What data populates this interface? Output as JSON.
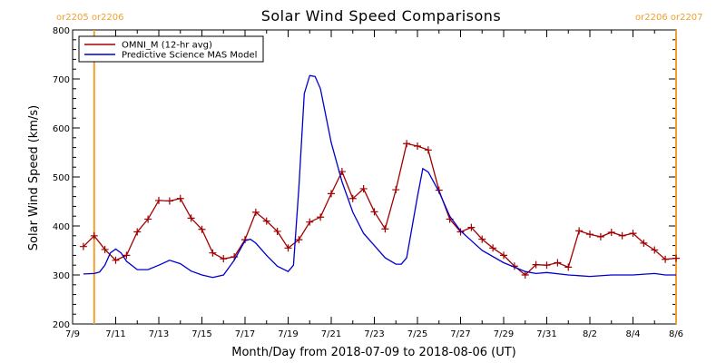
{
  "chart_data": {
    "type": "line",
    "title": "Solar Wind Speed Comparisons",
    "xlabel": "Month/Day from 2018-07-09 to 2018-08-06 (UT)",
    "ylabel": "Solar Wind Speed (km/s)",
    "xlim": [
      "2018-07-09",
      "2018-08-06"
    ],
    "ylim": [
      200,
      800
    ],
    "y_ticks": [
      200,
      300,
      400,
      500,
      600,
      700,
      800
    ],
    "x_ticks": [
      {
        "date": "2018-07-09",
        "label": "7/9"
      },
      {
        "date": "2018-07-11",
        "label": "7/11"
      },
      {
        "date": "2018-07-13",
        "label": "7/13"
      },
      {
        "date": "2018-07-15",
        "label": "7/15"
      },
      {
        "date": "2018-07-17",
        "label": "7/17"
      },
      {
        "date": "2018-07-19",
        "label": "7/19"
      },
      {
        "date": "2018-07-21",
        "label": "7/21"
      },
      {
        "date": "2018-07-23",
        "label": "7/23"
      },
      {
        "date": "2018-07-25",
        "label": "7/25"
      },
      {
        "date": "2018-07-27",
        "label": "7/27"
      },
      {
        "date": "2018-07-29",
        "label": "7/29"
      },
      {
        "date": "2018-07-31",
        "label": "7/31"
      },
      {
        "date": "2018-08-02",
        "label": "8/2"
      },
      {
        "date": "2018-08-04",
        "label": "8/4"
      },
      {
        "date": "2018-08-06",
        "label": "8/6"
      }
    ],
    "grid": false,
    "legend_position": "top-left",
    "markers": [
      {
        "date": "2018-07-10 00:00",
        "label": "or2205 or2206",
        "color": "#f0a030",
        "label_side": "left"
      },
      {
        "date": "2018-08-06 00:00",
        "label": "or2206 or2207",
        "color": "#f0a030",
        "label_side": "right"
      }
    ],
    "series": [
      {
        "name": "OMNI_M (12-hr avg)",
        "color": "#a00000",
        "marker": "plus",
        "points": [
          [
            "2018-07-09 12:00",
            358
          ],
          [
            "2018-07-10 00:00",
            380
          ],
          [
            "2018-07-10 12:00",
            352
          ],
          [
            "2018-07-11 00:00",
            330
          ],
          [
            "2018-07-11 12:00",
            340
          ],
          [
            "2018-07-12 00:00",
            388
          ],
          [
            "2018-07-12 12:00",
            414
          ],
          [
            "2018-07-13 00:00",
            452
          ],
          [
            "2018-07-13 12:00",
            451
          ],
          [
            "2018-07-14 00:00",
            456
          ],
          [
            "2018-07-14 12:00",
            416
          ],
          [
            "2018-07-15 00:00",
            393
          ],
          [
            "2018-07-15 12:00",
            345
          ],
          [
            "2018-07-16 00:00",
            333
          ],
          [
            "2018-07-16 12:00",
            337
          ],
          [
            "2018-07-17 00:00",
            372
          ],
          [
            "2018-07-17 12:00",
            428
          ],
          [
            "2018-07-18 00:00",
            410
          ],
          [
            "2018-07-18 12:00",
            389
          ],
          [
            "2018-07-19 00:00",
            355
          ],
          [
            "2018-07-19 12:00",
            372
          ],
          [
            "2018-07-20 00:00",
            408
          ],
          [
            "2018-07-20 12:00",
            418
          ],
          [
            "2018-07-21 00:00",
            466
          ],
          [
            "2018-07-21 12:00",
            511
          ],
          [
            "2018-07-22 00:00",
            456
          ],
          [
            "2018-07-22 12:00",
            476
          ],
          [
            "2018-07-23 00:00",
            429
          ],
          [
            "2018-07-23 12:00",
            394
          ],
          [
            "2018-07-24 00:00",
            474
          ],
          [
            "2018-07-24 12:00",
            568
          ],
          [
            "2018-07-25 00:00",
            563
          ],
          [
            "2018-07-25 12:00",
            555
          ],
          [
            "2018-07-26 00:00",
            473
          ],
          [
            "2018-07-26 12:00",
            414
          ],
          [
            "2018-07-27 00:00",
            388
          ],
          [
            "2018-07-27 12:00",
            397
          ],
          [
            "2018-07-28 00:00",
            373
          ],
          [
            "2018-07-28 12:00",
            355
          ],
          [
            "2018-07-29 00:00",
            340
          ],
          [
            "2018-07-29 12:00",
            318
          ],
          [
            "2018-07-30 00:00",
            300
          ],
          [
            "2018-07-30 12:00",
            321
          ],
          [
            "2018-07-31 00:00",
            320
          ],
          [
            "2018-07-31 12:00",
            325
          ],
          [
            "2018-08-01 00:00",
            316
          ],
          [
            "2018-08-01 12:00",
            390
          ],
          [
            "2018-08-02 00:00",
            383
          ],
          [
            "2018-08-02 12:00",
            378
          ],
          [
            "2018-08-03 00:00",
            387
          ],
          [
            "2018-08-03 12:00",
            380
          ],
          [
            "2018-08-04 00:00",
            385
          ],
          [
            "2018-08-04 12:00",
            365
          ],
          [
            "2018-08-05 00:00",
            351
          ],
          [
            "2018-08-05 12:00",
            332
          ],
          [
            "2018-08-06 00:00",
            334
          ]
        ]
      },
      {
        "name": "Predictive Science MAS Model",
        "color": "#0000cc",
        "marker": "none",
        "points": [
          [
            "2018-07-09 12:00",
            302
          ],
          [
            "2018-07-10 00:00",
            303
          ],
          [
            "2018-07-10 06:00",
            306
          ],
          [
            "2018-07-10 12:00",
            320
          ],
          [
            "2018-07-10 18:00",
            345
          ],
          [
            "2018-07-11 00:00",
            353
          ],
          [
            "2018-07-11 06:00",
            345
          ],
          [
            "2018-07-11 12:00",
            328
          ],
          [
            "2018-07-12 00:00",
            311
          ],
          [
            "2018-07-12 12:00",
            311
          ],
          [
            "2018-07-13 00:00",
            320
          ],
          [
            "2018-07-13 12:00",
            330
          ],
          [
            "2018-07-14 00:00",
            323
          ],
          [
            "2018-07-14 12:00",
            308
          ],
          [
            "2018-07-15 00:00",
            300
          ],
          [
            "2018-07-15 12:00",
            295
          ],
          [
            "2018-07-16 00:00",
            300
          ],
          [
            "2018-07-16 12:00",
            330
          ],
          [
            "2018-07-17 00:00",
            370
          ],
          [
            "2018-07-17 06:00",
            373
          ],
          [
            "2018-07-17 12:00",
            365
          ],
          [
            "2018-07-18 00:00",
            340
          ],
          [
            "2018-07-18 12:00",
            318
          ],
          [
            "2018-07-19 00:00",
            307
          ],
          [
            "2018-07-19 06:00",
            320
          ],
          [
            "2018-07-19 12:00",
            480
          ],
          [
            "2018-07-19 18:00",
            670
          ],
          [
            "2018-07-20 00:00",
            707
          ],
          [
            "2018-07-20 06:00",
            705
          ],
          [
            "2018-07-20 12:00",
            680
          ],
          [
            "2018-07-21 00:00",
            570
          ],
          [
            "2018-07-21 12:00",
            490
          ],
          [
            "2018-07-22 00:00",
            428
          ],
          [
            "2018-07-22 12:00",
            385
          ],
          [
            "2018-07-23 00:00",
            360
          ],
          [
            "2018-07-23 12:00",
            335
          ],
          [
            "2018-07-24 00:00",
            322
          ],
          [
            "2018-07-24 06:00",
            322
          ],
          [
            "2018-07-24 12:00",
            335
          ],
          [
            "2018-07-25 00:00",
            460
          ],
          [
            "2018-07-25 06:00",
            517
          ],
          [
            "2018-07-25 12:00",
            510
          ],
          [
            "2018-07-26 00:00",
            470
          ],
          [
            "2018-07-26 12:00",
            420
          ],
          [
            "2018-07-27 00:00",
            390
          ],
          [
            "2018-07-27 12:00",
            370
          ],
          [
            "2018-07-28 00:00",
            350
          ],
          [
            "2018-07-29 00:00",
            325
          ],
          [
            "2018-07-30 00:00",
            307
          ],
          [
            "2018-07-30 12:00",
            303
          ],
          [
            "2018-07-31 00:00",
            305
          ],
          [
            "2018-08-01 00:00",
            300
          ],
          [
            "2018-08-02 00:00",
            297
          ],
          [
            "2018-08-03 00:00",
            300
          ],
          [
            "2018-08-04 00:00",
            300
          ],
          [
            "2018-08-05 00:00",
            303
          ],
          [
            "2018-08-05 12:00",
            300
          ],
          [
            "2018-08-06 00:00",
            300
          ]
        ]
      }
    ]
  }
}
